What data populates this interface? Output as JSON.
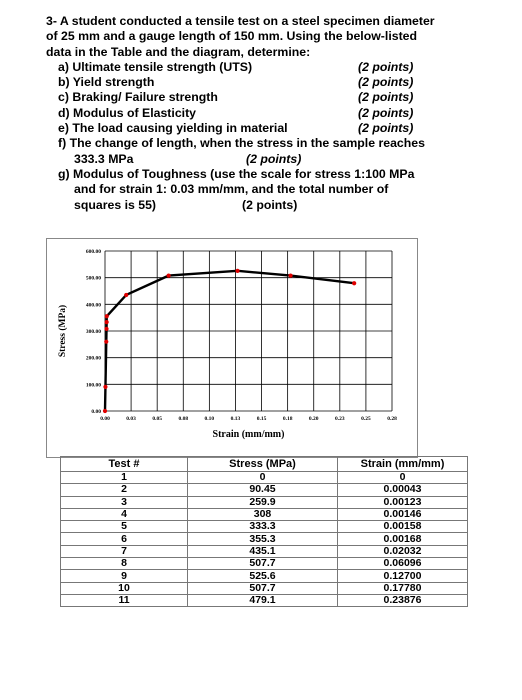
{
  "question": {
    "lines": [
      "3- A student conducted a tensile test on a steel specimen diameter",
      "of 25 mm and a gauge length of 150 mm. Using the below-listed",
      "data in the Table and the diagram, determine:"
    ],
    "items": [
      {
        "text": "a) Ultimate tensile strength (UTS)",
        "points": "(2 points)"
      },
      {
        "text": "b) Yield strength",
        "points": "(2 points)"
      },
      {
        "text": "c) Braking/ Failure strength",
        "points": "(2 points)"
      },
      {
        "text": "d) Modulus of Elasticity",
        "points": "(2 points)"
      },
      {
        "text": "e) The load causing yielding in material",
        "points": "(2 points)"
      }
    ],
    "item_f": {
      "line1": "f)  The change of length, when the stress in the sample reaches",
      "line2": "333.3 MPa",
      "points": "(2 points)"
    },
    "item_g": {
      "line1": "g) Modulus of Toughness (use the scale for stress 1:100 MPa",
      "line2": "and for strain 1: 0.03 mm/mm, and the total number of",
      "line3": "squares is 55)",
      "points": "(2 points)"
    }
  },
  "chart_data": {
    "type": "line",
    "xlabel": "Strain (mm/mm)",
    "ylabel": "Stress (MPa)",
    "x_ticks": [
      "0.00",
      "0.03",
      "0.05",
      "0.08",
      "0.10",
      "0.13",
      "0.15",
      "0.18",
      "0.20",
      "0.23",
      "0.25",
      "0.28"
    ],
    "y_ticks": [
      "0.00",
      "100.00",
      "200.00",
      "300.00",
      "400.00",
      "500.00",
      "600.00"
    ],
    "xlim": [
      0,
      0.275
    ],
    "ylim": [
      0,
      600
    ],
    "grid": true,
    "series": [
      {
        "x": [
          0,
          0.00043,
          0.00123,
          0.00146,
          0.00158,
          0.00168,
          0.02032,
          0.06096,
          0.127,
          0.1778,
          0.23876
        ],
        "y": [
          0,
          90.45,
          259.9,
          308,
          333.3,
          355.3,
          435.1,
          507.7,
          525.6,
          507.7,
          479.1
        ],
        "line_color": "#000000",
        "marker_color": "#e00000"
      }
    ]
  },
  "table": {
    "headers": [
      "Test #",
      "Stress (MPa)",
      "Strain (mm/mm)"
    ],
    "rows": [
      [
        "1",
        "0",
        "0"
      ],
      [
        "2",
        "90.45",
        "0.00043"
      ],
      [
        "3",
        "259.9",
        "0.00123"
      ],
      [
        "4",
        "308",
        "0.00146"
      ],
      [
        "5",
        "333.3",
        "0.00158"
      ],
      [
        "6",
        "355.3",
        "0.00168"
      ],
      [
        "7",
        "435.1",
        "0.02032"
      ],
      [
        "8",
        "507.7",
        "0.06096"
      ],
      [
        "9",
        "525.6",
        "0.12700"
      ],
      [
        "10",
        "507.7",
        "0.17780"
      ],
      [
        "11",
        "479.1",
        "0.23876"
      ]
    ]
  }
}
